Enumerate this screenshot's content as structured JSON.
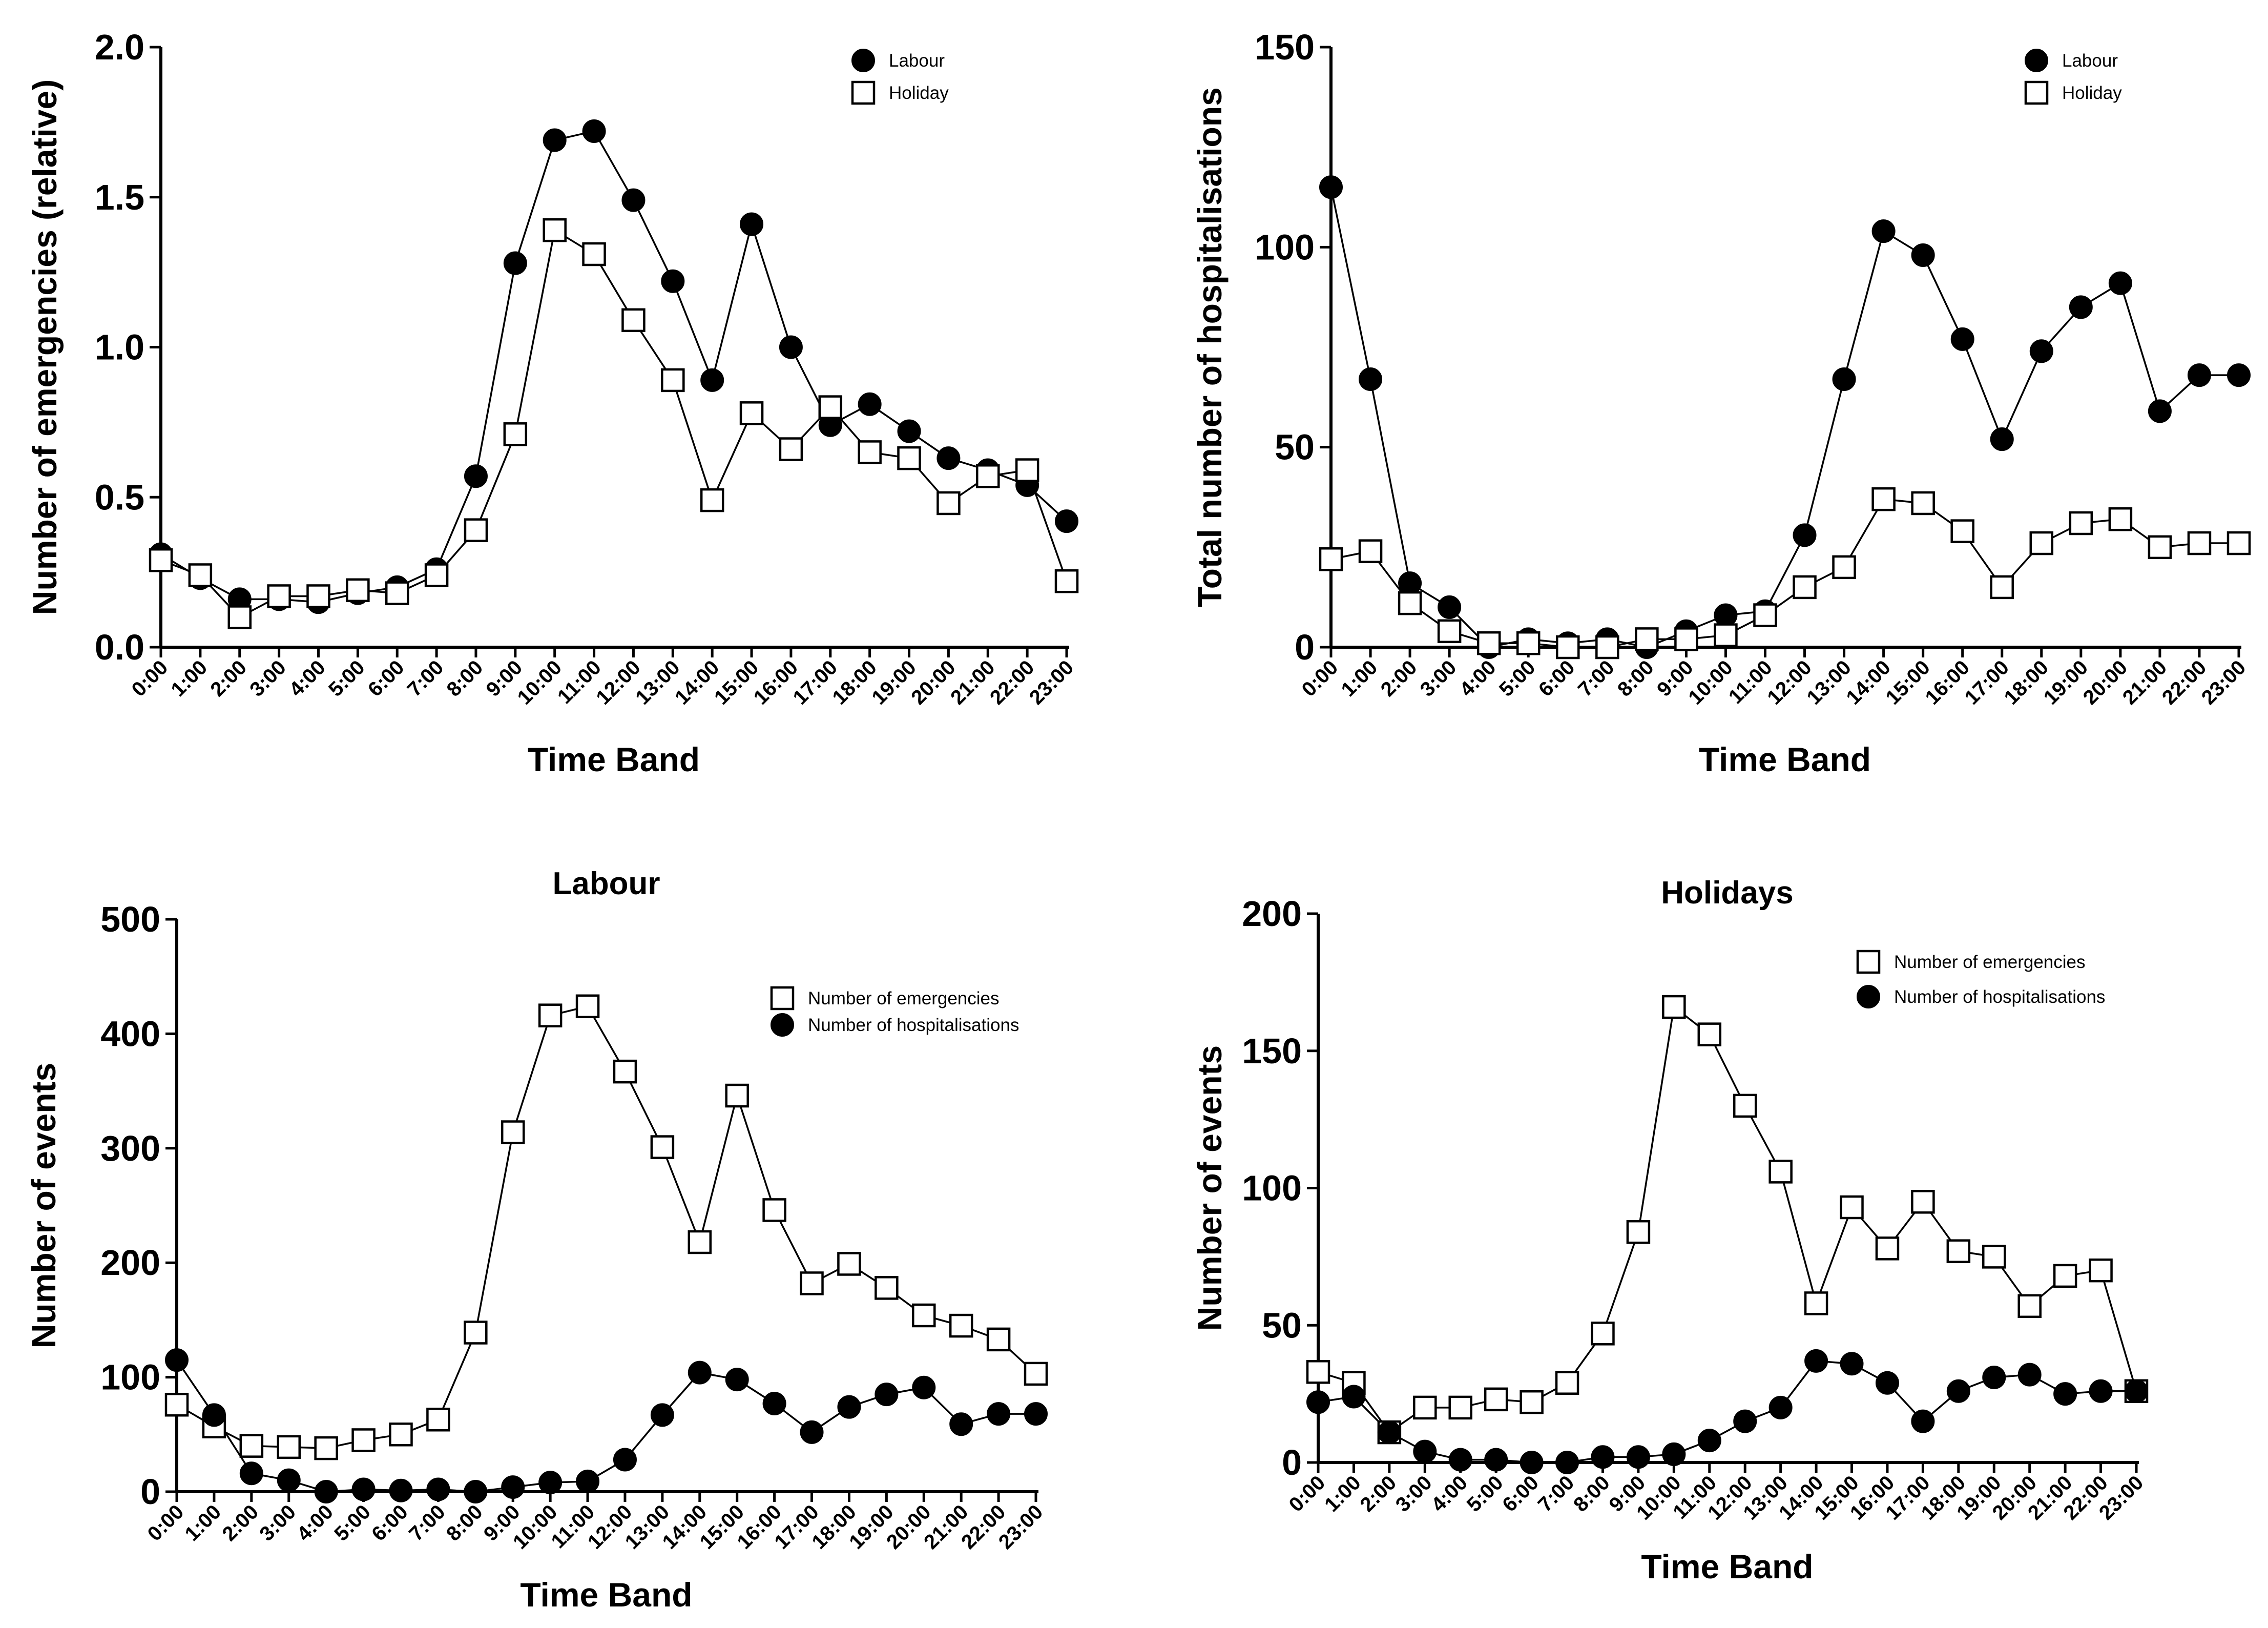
{
  "chart_data": [
    {
      "type": "line",
      "title": "",
      "xlabel": "Time Band",
      "ylabel": "Number of emergencies (relative)",
      "ylim": [
        0,
        2.0
      ],
      "yticks": [
        "0.0",
        "0.5",
        "1.0",
        "1.5",
        "2.0"
      ],
      "categories": [
        "0:00",
        "1:00",
        "2:00",
        "3:00",
        "4:00",
        "5:00",
        "6:00",
        "7:00",
        "8:00",
        "9:00",
        "10:00",
        "11:00",
        "12:00",
        "13:00",
        "14:00",
        "15:00",
        "16:00",
        "17:00",
        "18:00",
        "19:00",
        "20:00",
        "21:00",
        "22:00",
        "23:00"
      ],
      "legend_position": "top-right",
      "series": [
        {
          "name": "Labour",
          "marker": "circle",
          "values": [
            0.31,
            0.23,
            0.16,
            0.16,
            0.15,
            0.18,
            0.2,
            0.26,
            0.57,
            1.28,
            1.69,
            1.72,
            1.49,
            1.22,
            0.89,
            1.41,
            1.0,
            0.74,
            0.81,
            0.72,
            0.63,
            0.59,
            0.54,
            0.42
          ]
        },
        {
          "name": "Holiday",
          "marker": "square",
          "values": [
            0.29,
            0.24,
            0.1,
            0.17,
            0.17,
            0.19,
            0.18,
            0.24,
            0.39,
            0.71,
            1.39,
            1.31,
            1.09,
            0.89,
            0.49,
            0.78,
            0.66,
            0.8,
            0.65,
            0.63,
            0.48,
            0.57,
            0.59,
            0.22
          ]
        }
      ]
    },
    {
      "type": "line",
      "title": "",
      "xlabel": "Time Band",
      "ylabel": "Total number of hospitalisations",
      "ylim": [
        0,
        150
      ],
      "yticks": [
        "0",
        "50",
        "100",
        "150"
      ],
      "categories": [
        "0:00",
        "1:00",
        "2:00",
        "3:00",
        "4:00",
        "5:00",
        "6:00",
        "7:00",
        "8:00",
        "9:00",
        "10:00",
        "11:00",
        "12:00",
        "13:00",
        "14:00",
        "15:00",
        "16:00",
        "17:00",
        "18:00",
        "19:00",
        "20:00",
        "21:00",
        "22:00",
        "23:00"
      ],
      "legend_position": "top-right",
      "series": [
        {
          "name": "Labour",
          "marker": "circle",
          "values": [
            115,
            67,
            16,
            10,
            0,
            2,
            1,
            2,
            0,
            4,
            8,
            9,
            28,
            67,
            104,
            98,
            77,
            52,
            74,
            85,
            91,
            59,
            68,
            68
          ]
        },
        {
          "name": "Holiday",
          "marker": "square",
          "values": [
            22,
            24,
            11,
            4,
            1,
            1,
            0,
            0,
            2,
            2,
            3,
            8,
            15,
            20,
            37,
            36,
            29,
            15,
            26,
            31,
            32,
            25,
            26,
            26
          ]
        }
      ]
    },
    {
      "type": "line",
      "title": "Labour",
      "xlabel": "Time Band",
      "ylabel": "Number of events",
      "ylim": [
        0,
        500
      ],
      "yticks": [
        "0",
        "100",
        "200",
        "300",
        "400",
        "500"
      ],
      "categories": [
        "0:00",
        "1:00",
        "2:00",
        "3:00",
        "4:00",
        "5:00",
        "6:00",
        "7:00",
        "8:00",
        "9:00",
        "10:00",
        "11:00",
        "12:00",
        "13:00",
        "14:00",
        "15:00",
        "16:00",
        "17:00",
        "18:00",
        "19:00",
        "20:00",
        "21:00",
        "22:00",
        "23:00"
      ],
      "legend_position": "top-right",
      "series": [
        {
          "name": "Number of emergencies",
          "marker": "square",
          "values": [
            76,
            57,
            40,
            39,
            38,
            45,
            50,
            63,
            139,
            314,
            416,
            424,
            367,
            301,
            218,
            346,
            246,
            182,
            199,
            178,
            154,
            145,
            133,
            103
          ]
        },
        {
          "name": "Number of hospitalisations",
          "marker": "circle",
          "values": [
            115,
            67,
            16,
            10,
            0,
            2,
            1,
            2,
            0,
            4,
            8,
            9,
            28,
            67,
            104,
            98,
            77,
            52,
            74,
            85,
            91,
            59,
            68,
            68
          ]
        }
      ]
    },
    {
      "type": "line",
      "title": "Holidays",
      "xlabel": "Time Band",
      "ylabel": "Number of events",
      "ylim": [
        0,
        200
      ],
      "yticks": [
        "0",
        "50",
        "100",
        "150",
        "200"
      ],
      "categories": [
        "0:00",
        "1:00",
        "2:00",
        "3:00",
        "4:00",
        "5:00",
        "6:00",
        "7:00",
        "8:00",
        "9:00",
        "10:00",
        "11:00",
        "12:00",
        "13:00",
        "14:00",
        "15:00",
        "16:00",
        "17:00",
        "18:00",
        "19:00",
        "20:00",
        "21:00",
        "22:00",
        "23:00"
      ],
      "legend_position": "top-right",
      "series": [
        {
          "name": "Number of emergencies",
          "marker": "square",
          "values": [
            33,
            29,
            11,
            20,
            20,
            23,
            22,
            29,
            47,
            84,
            166,
            156,
            130,
            106,
            58,
            93,
            78,
            95,
            77,
            75,
            57,
            68,
            70,
            26
          ]
        },
        {
          "name": "Number of hospitalisations",
          "marker": "circle",
          "values": [
            22,
            24,
            11,
            4,
            1,
            1,
            0,
            0,
            2,
            2,
            3,
            8,
            15,
            20,
            37,
            36,
            29,
            15,
            26,
            31,
            32,
            25,
            26,
            26
          ]
        }
      ]
    }
  ]
}
